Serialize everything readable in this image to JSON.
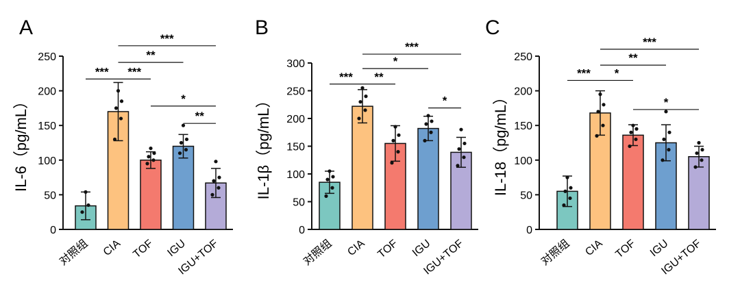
{
  "categories": [
    "对照组",
    "CIA",
    "TOF",
    "IGU",
    "IGU+TOF"
  ],
  "colors": [
    "#7cc7c0",
    "#fdc27f",
    "#f47a6e",
    "#6e9fcf",
    "#b4abd8"
  ],
  "chart_data": [
    {
      "type": "bar",
      "panel": "A",
      "ylabel": "IL-6（pg/mL）",
      "ylim": [
        0,
        250
      ],
      "yticks": [
        0,
        50,
        100,
        150,
        200,
        250
      ],
      "categories": [
        "对照组",
        "CIA",
        "TOF",
        "IGU",
        "IGU+TOF"
      ],
      "values": [
        34,
        170,
        100,
        120,
        67
      ],
      "errors": [
        20,
        42,
        12,
        17,
        21
      ],
      "points": [
        [
          54,
          25,
          35
        ],
        [
          200,
          130,
          160,
          175,
          185
        ],
        [
          117,
          95,
          100,
          105,
          110
        ],
        [
          150,
          110,
          115,
          125,
          130
        ],
        [
          98,
          50,
          60,
          70,
          75
        ]
      ],
      "significance": [
        {
          "a": 0,
          "b": 1,
          "label": "***",
          "y": 217
        },
        {
          "a": 1,
          "b": 2,
          "label": "***",
          "y": 217
        },
        {
          "a": 1,
          "b": 3,
          "label": "**",
          "y": 241
        },
        {
          "a": 1,
          "b": 4,
          "label": "***",
          "y": 265
        },
        {
          "a": 2,
          "b": 4,
          "label": "*",
          "y": 178
        },
        {
          "a": 3,
          "b": 4,
          "label": "**",
          "y": 153
        }
      ]
    },
    {
      "type": "bar",
      "panel": "B",
      "ylabel": "IL-1β（pg/mL）",
      "ylim": [
        0,
        300
      ],
      "yticks": [
        0,
        50,
        100,
        150,
        200,
        250,
        300
      ],
      "categories": [
        "对照组",
        "CIA",
        "TOF",
        "IGU",
        "IGU+TOF"
      ],
      "values": [
        85,
        222,
        155,
        182,
        139
      ],
      "errors": [
        20,
        30,
        32,
        22,
        27
      ],
      "points": [
        [
          105,
          60,
          75,
          90,
          95
        ],
        [
          255,
          200,
          215,
          230,
          240
        ],
        [
          185,
          120,
          140,
          160,
          170
        ],
        [
          205,
          160,
          175,
          190,
          195
        ],
        [
          180,
          115,
          130,
          145,
          155
        ]
      ],
      "significance": [
        {
          "a": 0,
          "b": 1,
          "label": "***",
          "y": 262
        },
        {
          "a": 1,
          "b": 2,
          "label": "**",
          "y": 262
        },
        {
          "a": 1,
          "b": 3,
          "label": "*",
          "y": 290
        },
        {
          "a": 1,
          "b": 4,
          "label": "***",
          "y": 316
        },
        {
          "a": 3,
          "b": 4,
          "label": "*",
          "y": 219
        }
      ]
    },
    {
      "type": "bar",
      "panel": "C",
      "ylabel": "IL-18（pg/mL）",
      "ylim": [
        0,
        250
      ],
      "yticks": [
        0,
        50,
        100,
        150,
        200,
        250
      ],
      "categories": [
        "对照组",
        "CIA",
        "TOF",
        "IGU",
        "IGU+TOF"
      ],
      "values": [
        55,
        168,
        136,
        125,
        105
      ],
      "errors": [
        22,
        32,
        15,
        26,
        15
      ],
      "points": [
        [
          75,
          35,
          45,
          55,
          60
        ],
        [
          195,
          135,
          150,
          170,
          180
        ],
        [
          150,
          120,
          130,
          140,
          145
        ],
        [
          170,
          100,
          115,
          130,
          140
        ],
        [
          125,
          90,
          100,
          110,
          115
        ]
      ],
      "significance": [
        {
          "a": 0,
          "b": 1,
          "label": "***",
          "y": 215
        },
        {
          "a": 1,
          "b": 2,
          "label": "*",
          "y": 215
        },
        {
          "a": 1,
          "b": 3,
          "label": "**",
          "y": 237
        },
        {
          "a": 1,
          "b": 4,
          "label": "***",
          "y": 260
        },
        {
          "a": 2,
          "b": 4,
          "label": "*",
          "y": 173
        }
      ]
    }
  ]
}
